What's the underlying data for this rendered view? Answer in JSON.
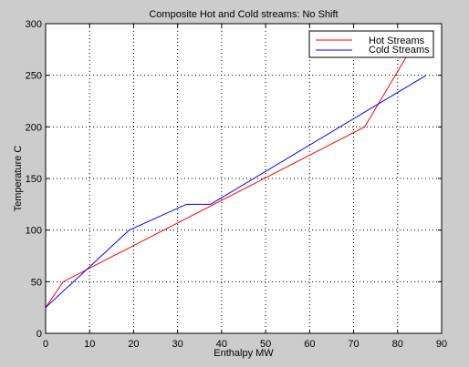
{
  "chart_data": {
    "type": "line",
    "title": "Composite Hot and Cold streams: No Shift",
    "xlabel": "Enthalpy MW",
    "ylabel": "Temperature C",
    "xlim": [
      0,
      90
    ],
    "ylim": [
      0,
      300
    ],
    "xticks": [
      0,
      10,
      20,
      30,
      40,
      50,
      60,
      70,
      80,
      90
    ],
    "yticks": [
      0,
      50,
      100,
      150,
      200,
      250,
      300
    ],
    "grid": true,
    "legend_position": "top-right",
    "series": [
      {
        "name": "Hot Streams",
        "color": "#ff0000",
        "points": [
          [
            0,
            25
          ],
          [
            4,
            50
          ],
          [
            72.5,
            200
          ],
          [
            82,
            268
          ]
        ]
      },
      {
        "name": "Cold Streams",
        "color": "#0000ff",
        "points": [
          [
            0,
            25
          ],
          [
            19,
            100
          ],
          [
            32,
            125
          ],
          [
            37.5,
            125
          ],
          [
            86.5,
            250
          ]
        ]
      }
    ]
  }
}
